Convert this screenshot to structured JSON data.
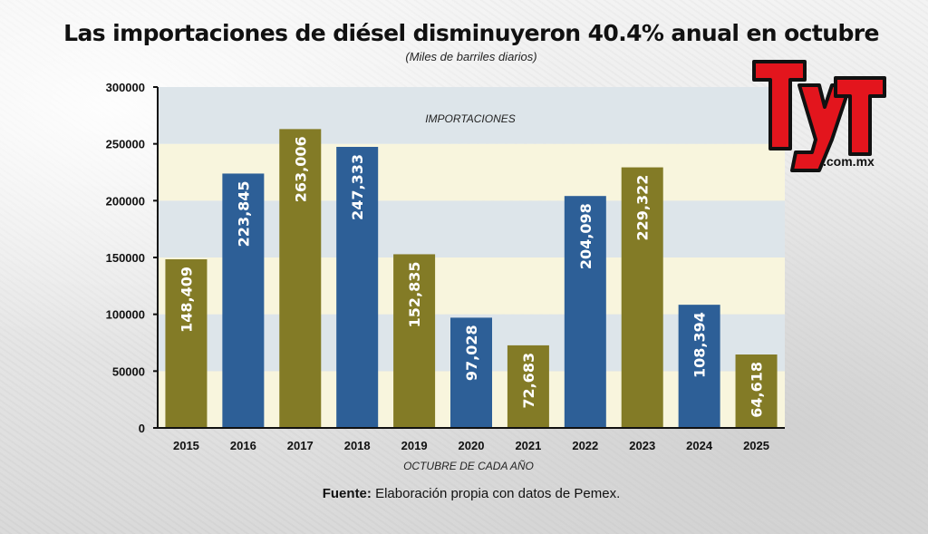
{
  "title": "Las importaciones de diésel disminuyeron 40.4% anual en octubre",
  "subtitle": "(Miles de barriles diarios)",
  "footer": {
    "label": "Fuente:",
    "text": " Elaboración propia con datos de Pemex."
  },
  "logo": {
    "text": "TyT",
    "domain": ".com.mx"
  },
  "colors": {
    "olive": "#837b26",
    "blue": "#2d5f97",
    "band_cream": "#f8f5dd",
    "band_blue": "#dde5ea",
    "logo_red": "#e3151d"
  },
  "chart_data": {
    "type": "bar",
    "title": "Las importaciones de diésel disminuyeron 40.4% anual en octubre",
    "subtitle": "(Miles de barriles diarios)",
    "series_label": "IMPORTACIONES",
    "xlabel": "OCTUBRE DE CADA AÑO",
    "ylabel": "",
    "categories": [
      "2015",
      "2016",
      "2017",
      "2018",
      "2019",
      "2020",
      "2021",
      "2022",
      "2023",
      "2024",
      "2025"
    ],
    "values": [
      148409,
      223845,
      263006,
      247333,
      152835,
      97028,
      72683,
      204098,
      229322,
      108394,
      64618
    ],
    "value_labels": [
      "148,409",
      "223,845",
      "263,006",
      "247,333",
      "152,835",
      "97,028",
      "72,683",
      "204,098",
      "229,322",
      "108,394",
      "64,618"
    ],
    "bar_colors": [
      "olive",
      "blue",
      "olive",
      "blue",
      "olive",
      "blue",
      "olive",
      "blue",
      "olive",
      "blue",
      "olive"
    ],
    "ylim": [
      0,
      300000
    ],
    "yticks": [
      0,
      50000,
      100000,
      150000,
      200000,
      250000,
      300000
    ],
    "ytick_labels": [
      "0",
      "50000",
      "100000",
      "150000",
      "200000",
      "250000",
      "300000"
    ],
    "grid": "horizontal bands"
  }
}
